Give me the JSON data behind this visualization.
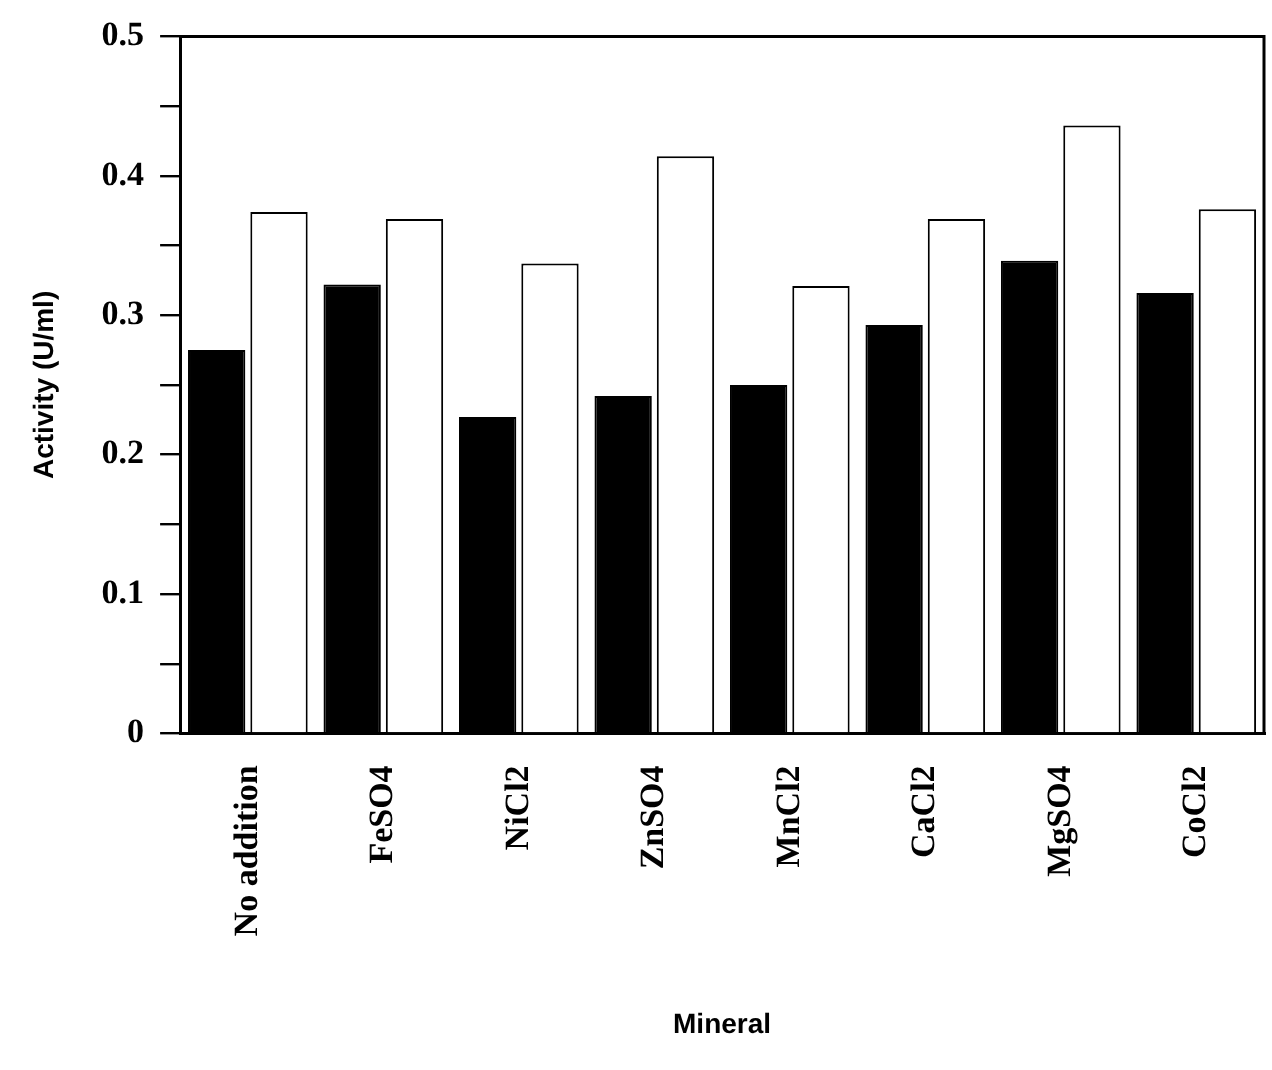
{
  "chart_data": {
    "type": "bar",
    "xlabel": "Mineral",
    "ylabel": "Activity (U/ml)",
    "categories": [
      "No addition",
      "FeSO4",
      "NiCl2",
      "ZnSO4",
      "MnCl2",
      "CaCl2",
      "MgSO4",
      "CoCl2"
    ],
    "series": [
      {
        "color": "#000000",
        "values": [
          0.275,
          0.322,
          0.227,
          0.242,
          0.25,
          0.293,
          0.339,
          0.316
        ]
      },
      {
        "color": "#ffffff",
        "values": [
          0.374,
          0.369,
          0.337,
          0.414,
          0.321,
          0.369,
          0.436,
          0.376
        ]
      }
    ],
    "ylim": [
      0,
      0.5
    ],
    "yticks": [
      0,
      {
        "value": 0.05,
        "label": null
      },
      0.1,
      {
        "value": 0.15,
        "label": null
      },
      0.2,
      {
        "value": 0.25,
        "label": null
      },
      0.3,
      {
        "value": 0.35,
        "label": null
      },
      0.4,
      {
        "value": 0.45,
        "label": null
      },
      0.5
    ],
    "grid": false,
    "legend": false
  }
}
